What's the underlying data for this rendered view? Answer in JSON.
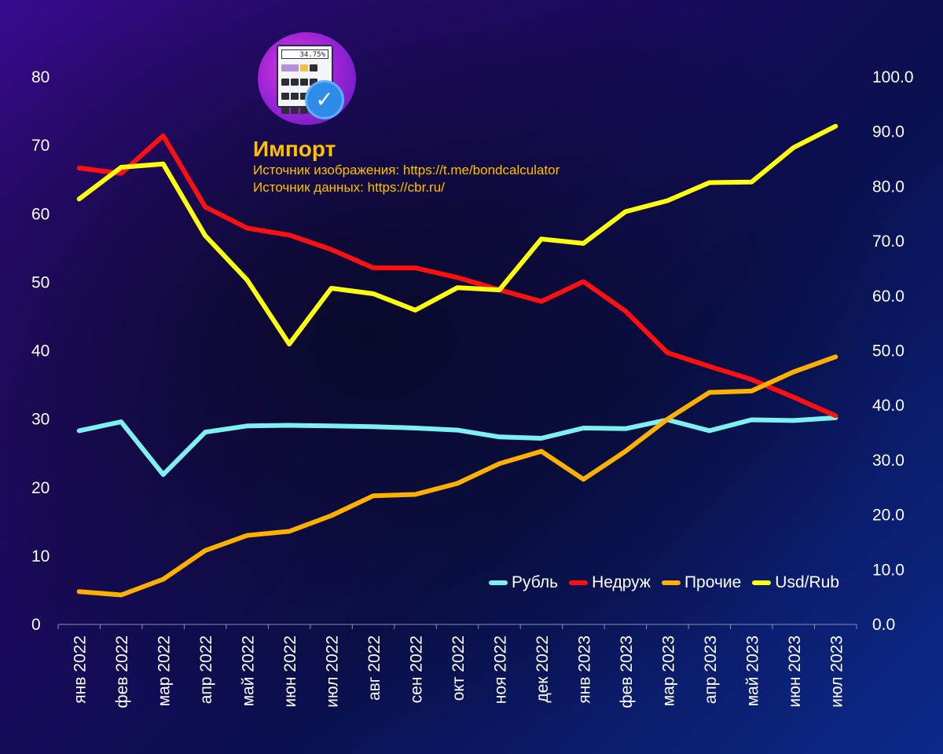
{
  "header": {
    "title": "Импорт",
    "image_source": "Источник изображения: https://t.me/bondcalculator",
    "data_source": "Источник данных: https://cbr.ru/",
    "logo_screen_text": "34.75%"
  },
  "chart_data": {
    "type": "line",
    "categories": [
      "янв 2022",
      "фев 2022",
      "мар 2022",
      "апр 2022",
      "май 2022",
      "июн 2022",
      "июл 2022",
      "авг 2022",
      "сен 2022",
      "окт 2022",
      "ноя 2022",
      "дек 2022",
      "янв 2023",
      "фев 2023",
      "мар 2023",
      "апр 2023",
      "май 2023",
      "июн 2023",
      "июл 2023"
    ],
    "y_left": {
      "ylim": [
        0,
        80
      ],
      "ticks": [
        "0",
        "10",
        "20",
        "30",
        "40",
        "50",
        "60",
        "70",
        "80"
      ]
    },
    "y_right": {
      "ylim": [
        0,
        100
      ],
      "ticks": [
        "0.0",
        "10.0",
        "20.0",
        "30.0",
        "40.0",
        "50.0",
        "60.0",
        "70.0",
        "80.0",
        "90.0",
        "100.0"
      ]
    },
    "series": [
      {
        "name": "Рубль",
        "axis": "left",
        "color": "#7ff0f0",
        "values": [
          28.3,
          29.6,
          21.9,
          28.1,
          29.0,
          29.1,
          29.0,
          28.9,
          28.7,
          28.4,
          27.4,
          27.2,
          28.7,
          28.6,
          29.9,
          28.3,
          29.9,
          29.8,
          30.2
        ]
      },
      {
        "name": "Недруж",
        "axis": "left",
        "color": "#ff1010",
        "values": [
          66.7,
          65.9,
          71.4,
          61.0,
          57.9,
          56.9,
          54.8,
          52.1,
          52.1,
          50.7,
          48.9,
          47.2,
          50.1,
          45.8,
          39.7,
          37.7,
          35.8,
          33.2,
          30.5
        ]
      },
      {
        "name": "Прочие",
        "axis": "left",
        "color": "#ffb000",
        "values": [
          4.8,
          4.3,
          6.6,
          10.8,
          13.0,
          13.6,
          15.9,
          18.8,
          19.0,
          20.6,
          23.5,
          25.3,
          21.2,
          25.3,
          30.0,
          33.9,
          34.1,
          36.9,
          39.1
        ]
      },
      {
        "name": "Usd/Rub",
        "axis": "right",
        "color": "#ffff10",
        "values": [
          77.7,
          83.5,
          84.1,
          71.0,
          62.9,
          51.2,
          61.4,
          60.4,
          57.4,
          61.5,
          61.1,
          70.4,
          69.6,
          75.4,
          77.4,
          80.7,
          80.8,
          87.1,
          91.0
        ]
      }
    ],
    "legend_position": "bottom-right",
    "grid": false
  }
}
